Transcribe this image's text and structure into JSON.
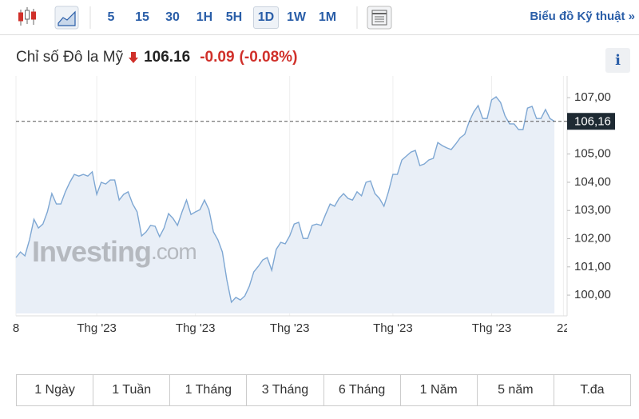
{
  "toolbar": {
    "intervals": [
      {
        "label": "5"
      },
      {
        "label": "15"
      },
      {
        "label": "30"
      },
      {
        "label": "1H"
      },
      {
        "label": "5H"
      },
      {
        "label": "1D",
        "active": true
      },
      {
        "label": "1W"
      },
      {
        "label": "1M"
      }
    ],
    "link": "Biểu đồ Kỹ thuật »"
  },
  "header": {
    "name": "Chỉ số Đô la Mỹ",
    "price": "106.16",
    "change": "-0.09",
    "change_percent": "(-0.08%)",
    "info": "i"
  },
  "chart_data": {
    "type": "area",
    "color": "#7ea7d3",
    "fill": "#e9eff7",
    "grid": "x",
    "values": [
      101.33,
      101.53,
      101.39,
      101.96,
      102.69,
      102.38,
      102.52,
      102.95,
      103.6,
      103.23,
      103.23,
      103.66,
      104.0,
      104.28,
      104.22,
      104.28,
      104.22,
      104.37,
      103.57,
      104.0,
      103.94,
      104.08,
      104.08,
      103.37,
      103.57,
      103.66,
      103.23,
      102.95,
      102.1,
      102.24,
      102.47,
      102.44,
      102.07,
      102.38,
      102.89,
      102.72,
      102.47,
      102.95,
      103.37,
      102.86,
      102.95,
      103.03,
      103.37,
      103.03,
      102.24,
      101.96,
      101.53,
      100.54,
      99.75,
      99.92,
      99.83,
      99.97,
      100.31,
      100.82,
      101.02,
      101.25,
      101.33,
      100.88,
      101.62,
      101.87,
      101.82,
      102.1,
      102.52,
      102.58,
      102.01,
      102.01,
      102.47,
      102.52,
      102.47,
      102.86,
      103.23,
      103.15,
      103.43,
      103.6,
      103.43,
      103.37,
      103.66,
      103.52,
      104.0,
      104.05,
      103.6,
      103.43,
      103.15,
      103.66,
      104.28,
      104.28,
      104.79,
      104.93,
      105.07,
      105.13,
      104.59,
      104.65,
      104.79,
      104.85,
      105.41,
      105.3,
      105.22,
      105.16,
      105.36,
      105.58,
      105.7,
      106.15,
      106.49,
      106.72,
      106.26,
      106.26,
      106.92,
      107.03,
      106.83,
      106.35,
      106.07,
      106.07,
      105.87,
      105.87,
      106.63,
      106.69,
      106.26,
      106.26,
      106.58,
      106.26,
      106.16
    ],
    "xlim": [
      0,
      123
    ],
    "xticks": [
      {
        "value": 0,
        "label": "8"
      },
      {
        "value": 18,
        "label": "Thg '23"
      },
      {
        "value": 40,
        "label": "Thg '23"
      },
      {
        "value": 61,
        "label": "Thg '23"
      },
      {
        "value": 84,
        "label": "Thg '23"
      },
      {
        "value": 106,
        "label": "Thg '23"
      },
      {
        "value": 122,
        "label": "22"
      }
    ],
    "ylim": [
      99.35,
      107.4
    ],
    "yticks": [
      {
        "value": 100,
        "label": "100,00"
      },
      {
        "value": 101,
        "label": "101,00"
      },
      {
        "value": 102,
        "label": "102,00"
      },
      {
        "value": 103,
        "label": "103,00"
      },
      {
        "value": 104,
        "label": "104,00"
      },
      {
        "value": 105,
        "label": "105,00"
      },
      {
        "value": 107,
        "label": "107,00"
      }
    ],
    "current": {
      "value": 106.16,
      "label": "106,16"
    },
    "watermark": [
      "Investing",
      ".com"
    ]
  },
  "ranges": [
    "1 Ngày",
    "1 Tuần",
    "1 Tháng",
    "3 Tháng",
    "6 Tháng",
    "1 Năm",
    "5 năm",
    "T.đa"
  ]
}
